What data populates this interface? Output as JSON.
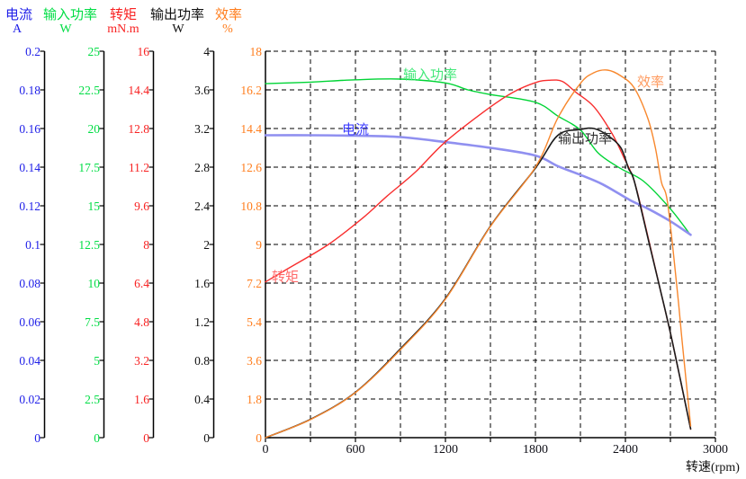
{
  "chart_data": {
    "type": "line",
    "title": "",
    "x_axis": {
      "label": "转速(rpm)",
      "min": 0,
      "max": 3000,
      "grid_step": 300,
      "tick_labels": [
        "0",
        "600",
        "1200",
        "1800",
        "2400",
        "3000"
      ],
      "tick_color": "#101018"
    },
    "grid": {
      "on": true,
      "dash": "5,4",
      "color": "#000000"
    },
    "y_axes": [
      {
        "id": "current",
        "name": "电流",
        "unit": "A",
        "color": "#2020e8",
        "max": 0.2,
        "ticks": [
          "0.2",
          "0.18",
          "0.16",
          "0.14",
          "0.12",
          "0.1",
          "0.08",
          "0.06",
          "0.04",
          "0.02",
          "0"
        ]
      },
      {
        "id": "input_power",
        "name": "输入功率",
        "unit": "W",
        "color": "#00dd44",
        "max": 25,
        "ticks": [
          "25",
          "22.5",
          "20",
          "17.5",
          "15",
          "12.5",
          "10",
          "7.5",
          "5",
          "2.5",
          "0"
        ]
      },
      {
        "id": "torque",
        "name": "转矩",
        "unit": "mN.m",
        "color": "#f82222",
        "max": 16,
        "ticks": [
          "16",
          "14.4",
          "12.8",
          "11.2",
          "9.6",
          "8",
          "6.4",
          "4.8",
          "3.2",
          "1.6",
          "0"
        ]
      },
      {
        "id": "output_power",
        "name": "输出功率",
        "unit": "W",
        "color": "#101010",
        "max": 4,
        "ticks": [
          "4",
          "3.6",
          "3.2",
          "2.8",
          "2.4",
          "2",
          "1.6",
          "1.2",
          "0.8",
          "0.4",
          "0"
        ]
      },
      {
        "id": "efficiency",
        "name": "效率",
        "unit": "%",
        "color": "#ff7d1c",
        "max": 18,
        "ticks": [
          "18",
          "16.2",
          "14.4",
          "12.6",
          "10.8",
          "9",
          "7.2",
          "5.4",
          "3.6",
          "1.8",
          "0"
        ]
      }
    ],
    "series": [
      {
        "id": "input_power",
        "label": "输入功率",
        "axis": "input_power",
        "color": "#00d435",
        "label_color": "#44e87a",
        "points": [
          [
            0,
            22.9
          ],
          [
            300,
            23.0
          ],
          [
            600,
            23.15
          ],
          [
            900,
            23.2
          ],
          [
            1200,
            22.95
          ],
          [
            1350,
            22.5
          ],
          [
            1500,
            22.2
          ],
          [
            1800,
            21.7
          ],
          [
            1950,
            20.8
          ],
          [
            2100,
            19.9
          ],
          [
            2220,
            18.4
          ],
          [
            2370,
            17.4
          ],
          [
            2520,
            16.6
          ],
          [
            2700,
            14.8
          ],
          [
            2835,
            13.1
          ]
        ]
      },
      {
        "id": "current",
        "label": "电流",
        "axis": "current",
        "color": "#9090f0",
        "label_color": "#3c3cff",
        "points": [
          [
            0,
            0.1565
          ],
          [
            300,
            0.1565
          ],
          [
            600,
            0.1563
          ],
          [
            900,
            0.1556
          ],
          [
            1200,
            0.153
          ],
          [
            1500,
            0.15
          ],
          [
            1800,
            0.146
          ],
          [
            1950,
            0.1405
          ],
          [
            2100,
            0.136
          ],
          [
            2250,
            0.131
          ],
          [
            2430,
            0.123
          ],
          [
            2550,
            0.1185
          ],
          [
            2700,
            0.112
          ],
          [
            2835,
            0.105
          ]
        ]
      },
      {
        "id": "torque",
        "label": "转矩",
        "axis": "torque",
        "color": "#f82e2e",
        "label_color": "#ff6a6a",
        "points": [
          [
            0,
            6.45
          ],
          [
            150,
            7.0
          ],
          [
            420,
            8.0
          ],
          [
            650,
            9.1
          ],
          [
            810,
            10.0
          ],
          [
            1000,
            11.0
          ],
          [
            1200,
            12.25
          ],
          [
            1490,
            13.65
          ],
          [
            1650,
            14.3
          ],
          [
            1800,
            14.7
          ],
          [
            1890,
            14.8
          ],
          [
            1980,
            14.75
          ],
          [
            2070,
            14.3
          ],
          [
            2190,
            13.7
          ],
          [
            2310,
            12.6
          ],
          [
            2390,
            11.6
          ],
          [
            2460,
            10.6
          ],
          [
            2540,
            8.6
          ],
          [
            2630,
            6.2
          ],
          [
            2712,
            4.0
          ],
          [
            2835,
            0.35
          ]
        ]
      },
      {
        "id": "output_power",
        "label": "输出功率",
        "axis": "output_power",
        "color": "#1c1c1c",
        "label_color": "#303030",
        "points": [
          [
            0,
            0
          ],
          [
            300,
            0.19
          ],
          [
            600,
            0.47
          ],
          [
            900,
            0.92
          ],
          [
            1200,
            1.44
          ],
          [
            1500,
            2.19
          ],
          [
            1800,
            2.79
          ],
          [
            1950,
            3.13
          ],
          [
            2100,
            3.19
          ],
          [
            2190,
            3.2
          ],
          [
            2280,
            3.13
          ],
          [
            2370,
            3.0
          ],
          [
            2420,
            2.79
          ],
          [
            2460,
            2.65
          ],
          [
            2560,
            2.0
          ],
          [
            2630,
            1.55
          ],
          [
            2712,
            1.0
          ],
          [
            2835,
            0.09
          ]
        ]
      },
      {
        "id": "efficiency",
        "label": "效率",
        "axis": "efficiency",
        "color": "#f8882e",
        "label_color": "#ff9a5e",
        "points": [
          [
            0,
            0
          ],
          [
            300,
            0.84
          ],
          [
            600,
            2.1
          ],
          [
            900,
            4.1
          ],
          [
            1200,
            6.45
          ],
          [
            1500,
            9.84
          ],
          [
            1800,
            12.6
          ],
          [
            1950,
            14.9
          ],
          [
            2100,
            16.5
          ],
          [
            2190,
            17.0
          ],
          [
            2280,
            17.12
          ],
          [
            2370,
            16.85
          ],
          [
            2460,
            16.28
          ],
          [
            2550,
            14.86
          ],
          [
            2600,
            13.5
          ],
          [
            2640,
            11.9
          ],
          [
            2682,
            10.9
          ],
          [
            2748,
            6.7
          ],
          [
            2778,
            4.5
          ],
          [
            2835,
            0.55
          ]
        ]
      }
    ]
  }
}
